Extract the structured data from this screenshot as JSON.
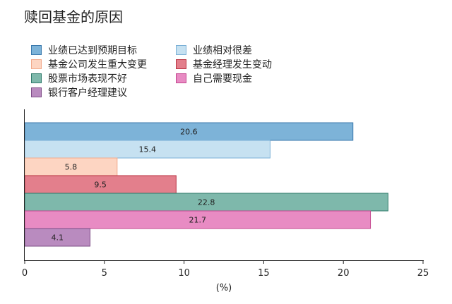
{
  "chart_data": {
    "type": "bar",
    "orientation": "horizontal",
    "title": "赎回基金的原因",
    "xlabel": "(%)",
    "ylabel": "",
    "xlim": [
      0,
      25
    ],
    "xticks": [
      0,
      5,
      10,
      15,
      20,
      25
    ],
    "grid": false,
    "legend_position": "top-left",
    "show_data_labels": true,
    "series": [
      {
        "name": "业绩已达到预期目标",
        "value": 20.6,
        "label": "20.6",
        "color": "#7db3d8",
        "border": "#3a79ad"
      },
      {
        "name": "业绩相对很差",
        "value": 15.4,
        "label": "15.4",
        "color": "#c6e1f1",
        "border": "#7ab0d6"
      },
      {
        "name": "基金公司发生重大变更",
        "value": 5.8,
        "label": "5.8",
        "color": "#fdd5c2",
        "border": "#f2a98a"
      },
      {
        "name": "基金经理发生变动",
        "value": 9.5,
        "label": "9.5",
        "color": "#e37f8c",
        "border": "#b8303f"
      },
      {
        "name": "股票市场表现不好",
        "value": 22.8,
        "label": "22.8",
        "color": "#7eb8ab",
        "border": "#2f7a6a"
      },
      {
        "name": "自己需要现金",
        "value": 21.7,
        "label": "21.7",
        "color": "#e88bc3",
        "border": "#c3448e"
      },
      {
        "name": "银行客户经理建议",
        "value": 4.1,
        "label": "4.1",
        "color": "#b98bbf",
        "border": "#7e4d87"
      }
    ]
  }
}
